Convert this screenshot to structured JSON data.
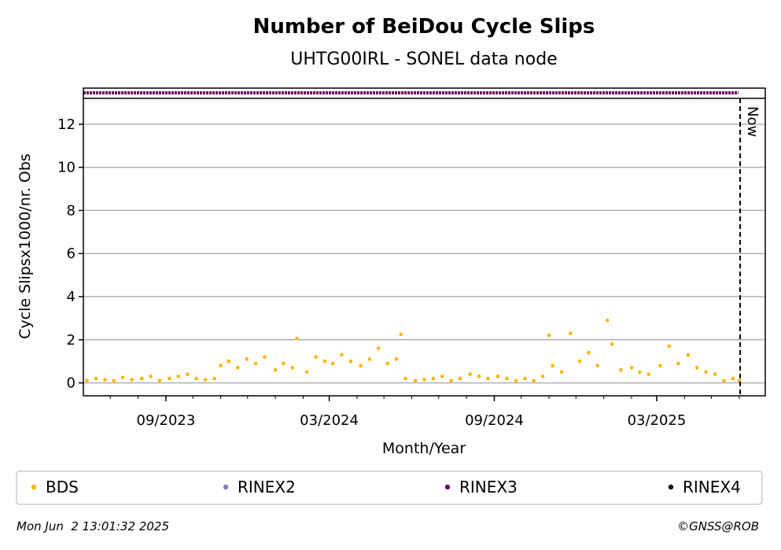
{
  "chart_data": {
    "type": "scatter",
    "title": "Number of BeiDou Cycle Slips",
    "subtitle": "UHTG00IRL - SONEL data node",
    "xlabel": "Month/Year",
    "ylabel": "Cycle Slipsx1000/nr. Obs",
    "ylim": [
      -0.6,
      13.2
    ],
    "yticks": [
      0,
      2,
      4,
      6,
      8,
      10,
      12
    ],
    "xlim": [
      "2023-06-01",
      "2025-06-30"
    ],
    "xticks": [
      {
        "date": "2023-09-01",
        "label": "09/2023"
      },
      {
        "date": "2024-03-01",
        "label": "03/2024"
      },
      {
        "date": "2024-09-01",
        "label": "09/2024"
      },
      {
        "date": "2025-03-01",
        "label": "03/2025"
      }
    ],
    "minor_ticks": [
      "2023-07-01",
      "2023-08-01",
      "2023-10-01",
      "2023-11-01",
      "2023-12-01",
      "2024-01-01",
      "2024-02-01",
      "2024-04-01",
      "2024-05-01",
      "2024-06-01",
      "2024-07-01",
      "2024-08-01",
      "2024-10-01",
      "2024-11-01",
      "2024-12-01",
      "2025-01-01",
      "2025-02-01",
      "2025-04-01",
      "2025-05-01",
      "2025-06-01"
    ],
    "now_label": "Now",
    "now_date": "2025-06-02",
    "grid": "y",
    "series": [
      {
        "name": "BDS",
        "color": "#ffb400",
        "points": [
          [
            "2023-06-05",
            0.1
          ],
          [
            "2023-06-15",
            0.2
          ],
          [
            "2023-06-25",
            0.15
          ],
          [
            "2023-07-05",
            0.1
          ],
          [
            "2023-07-15",
            0.25
          ],
          [
            "2023-07-25",
            0.15
          ],
          [
            "2023-08-05",
            0.2
          ],
          [
            "2023-08-15",
            0.3
          ],
          [
            "2023-08-25",
            0.1
          ],
          [
            "2023-09-05",
            0.2
          ],
          [
            "2023-09-15",
            0.3
          ],
          [
            "2023-09-25",
            0.4
          ],
          [
            "2023-10-05",
            0.2
          ],
          [
            "2023-10-15",
            0.15
          ],
          [
            "2023-10-25",
            0.2
          ],
          [
            "2023-11-01",
            0.8
          ],
          [
            "2023-11-10",
            1.0
          ],
          [
            "2023-11-20",
            0.7
          ],
          [
            "2023-11-30",
            1.1
          ],
          [
            "2023-12-10",
            0.9
          ],
          [
            "2023-12-20",
            1.2
          ],
          [
            "2024-01-01",
            0.6
          ],
          [
            "2024-01-10",
            0.9
          ],
          [
            "2024-01-20",
            0.7
          ],
          [
            "2024-01-25",
            2.05
          ],
          [
            "2024-02-05",
            0.5
          ],
          [
            "2024-02-15",
            1.2
          ],
          [
            "2024-02-25",
            1.0
          ],
          [
            "2024-03-05",
            0.9
          ],
          [
            "2024-03-15",
            1.3
          ],
          [
            "2024-03-25",
            1.0
          ],
          [
            "2024-04-05",
            0.8
          ],
          [
            "2024-04-15",
            1.1
          ],
          [
            "2024-04-25",
            1.6
          ],
          [
            "2024-05-05",
            0.9
          ],
          [
            "2024-05-15",
            1.1
          ],
          [
            "2024-05-20",
            2.25
          ],
          [
            "2024-05-25",
            0.2
          ],
          [
            "2024-06-05",
            0.1
          ],
          [
            "2024-06-15",
            0.15
          ],
          [
            "2024-06-25",
            0.2
          ],
          [
            "2024-07-05",
            0.3
          ],
          [
            "2024-07-15",
            0.1
          ],
          [
            "2024-07-25",
            0.2
          ],
          [
            "2024-08-05",
            0.4
          ],
          [
            "2024-08-15",
            0.3
          ],
          [
            "2024-08-25",
            0.2
          ],
          [
            "2024-09-05",
            0.3
          ],
          [
            "2024-09-15",
            0.2
          ],
          [
            "2024-09-25",
            0.1
          ],
          [
            "2024-10-05",
            0.2
          ],
          [
            "2024-10-15",
            0.1
          ],
          [
            "2024-10-25",
            0.3
          ],
          [
            "2024-11-01",
            2.2
          ],
          [
            "2024-11-05",
            0.8
          ],
          [
            "2024-11-15",
            0.5
          ],
          [
            "2024-11-25",
            2.3
          ],
          [
            "2024-12-05",
            1.0
          ],
          [
            "2024-12-15",
            1.4
          ],
          [
            "2024-12-25",
            0.8
          ],
          [
            "2025-01-05",
            2.9
          ],
          [
            "2025-01-10",
            1.8
          ],
          [
            "2025-01-20",
            0.6
          ],
          [
            "2025-02-01",
            0.7
          ],
          [
            "2025-02-10",
            0.5
          ],
          [
            "2025-02-20",
            0.4
          ],
          [
            "2025-03-05",
            0.8
          ],
          [
            "2025-03-15",
            1.7
          ],
          [
            "2025-03-25",
            0.9
          ],
          [
            "2025-04-05",
            1.3
          ],
          [
            "2025-04-15",
            0.7
          ],
          [
            "2025-04-25",
            0.5
          ],
          [
            "2025-05-05",
            0.4
          ],
          [
            "2025-05-15",
            0.1
          ],
          [
            "2025-05-25",
            0.2
          ],
          [
            "2025-06-01",
            0.1
          ]
        ]
      },
      {
        "name": "RINEX2",
        "color": "#7f7fbf",
        "points": []
      },
      {
        "name": "RINEX3",
        "color": "#6a0a5f",
        "points": [],
        "strip_from": "2023-06-01",
        "strip_to": "2025-05-31"
      },
      {
        "name": "RINEX4",
        "color": "#1a0a1a",
        "points": []
      }
    ]
  },
  "footer": {
    "timestamp": "Mon Jun  2 13:01:32 2025",
    "copyright": "©GNSS@ROB"
  }
}
